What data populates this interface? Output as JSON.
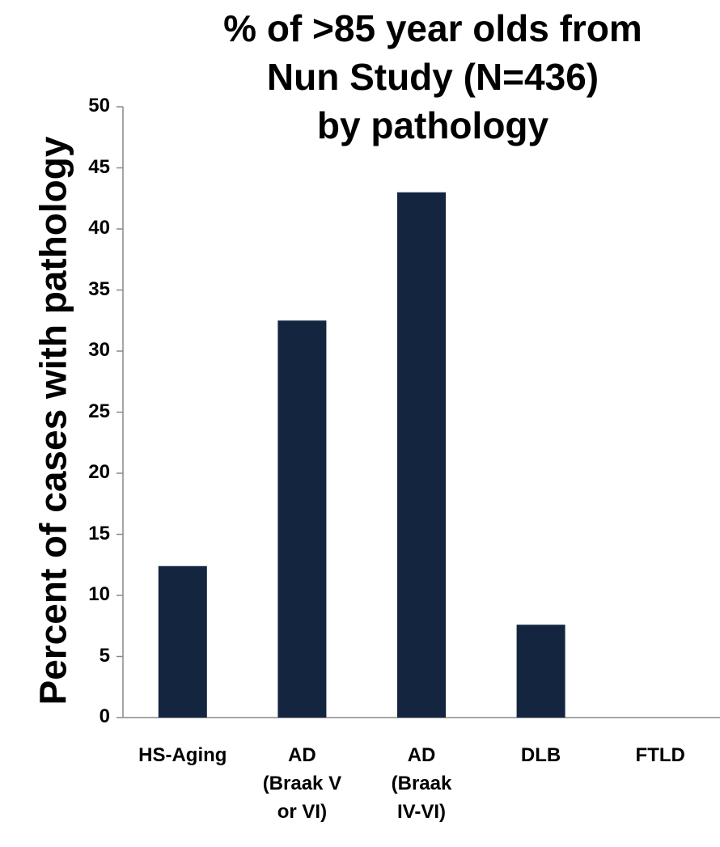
{
  "chart_data": {
    "type": "bar",
    "title": "% of >85 year olds from\nNun Study (N=436)\nby pathology",
    "ylabel": "Percent of cases with pathology",
    "categories": [
      "HS-Aging",
      "AD\n(Braak V\nor VI)",
      "AD\n(Braak\nIV-VI)",
      "DLB",
      "FTLD"
    ],
    "values": [
      12.4,
      32.5,
      43,
      7.6,
      0
    ],
    "color": "#14253f",
    "ylim": [
      0,
      50
    ],
    "yticks": [
      0,
      5,
      10,
      15,
      20,
      25,
      30,
      35,
      40,
      45,
      50
    ],
    "grid": false
  }
}
